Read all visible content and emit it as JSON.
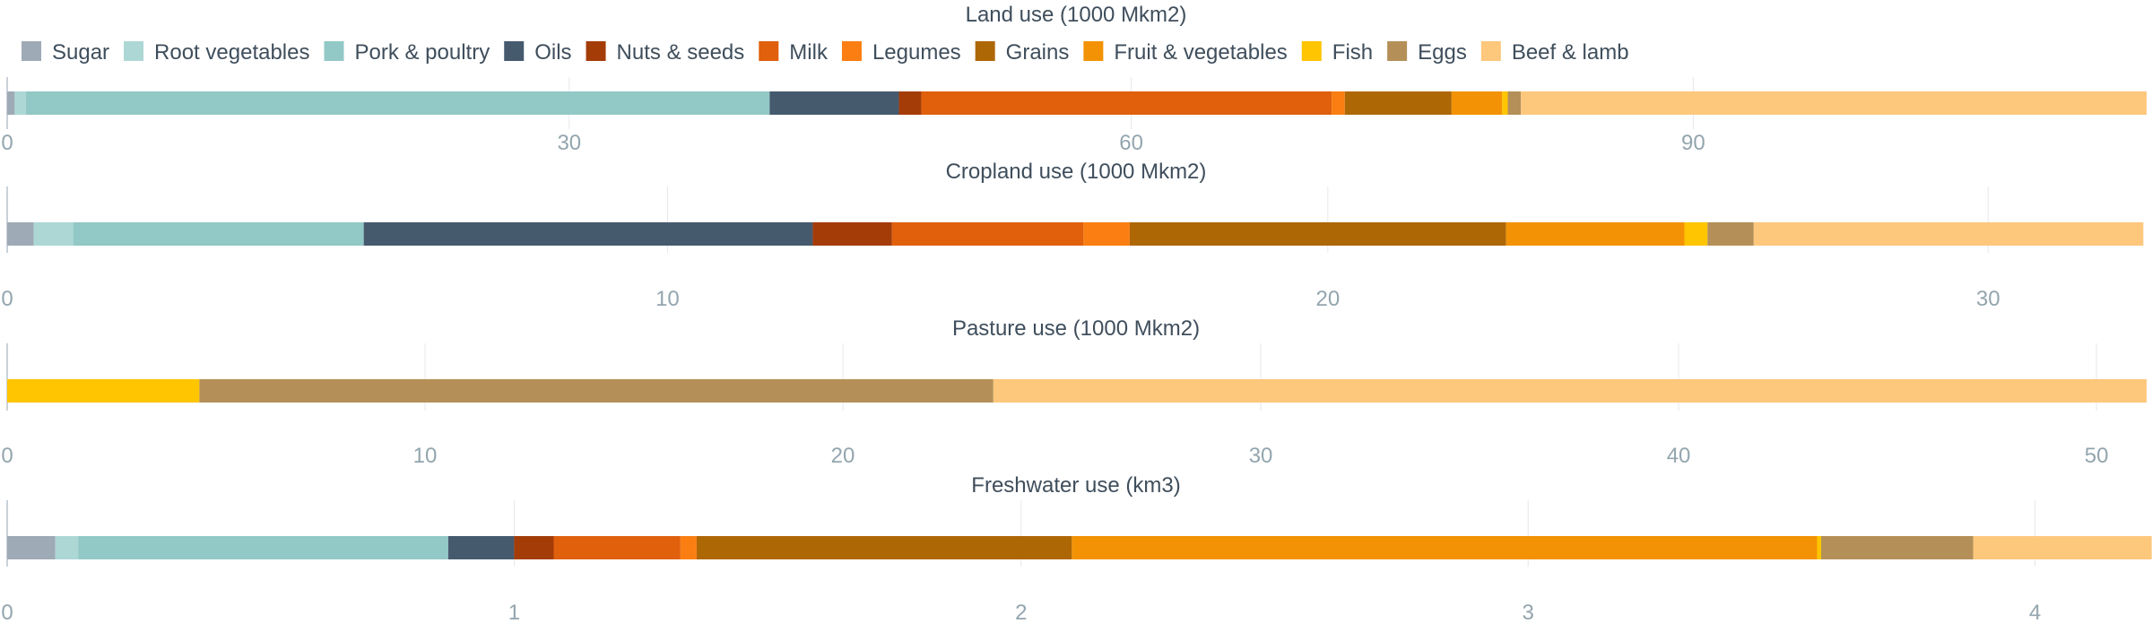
{
  "chart_data": {
    "type": "bar",
    "orientation": "horizontal",
    "stacked": true,
    "legend": {
      "placement": "top-left",
      "entries": [
        {
          "name": "Sugar",
          "color": "#9eaab6"
        },
        {
          "name": "Root vegetables",
          "color": "#acd7d5"
        },
        {
          "name": "Pork & poultry",
          "color": "#92c8c6"
        },
        {
          "name": "Oils",
          "color": "#465a6e"
        },
        {
          "name": "Nuts & seeds",
          "color": "#a43c08"
        },
        {
          "name": "Milk",
          "color": "#e0600c"
        },
        {
          "name": "Legumes",
          "color": "#fa7e12"
        },
        {
          "name": "Grains",
          "color": "#ae6705"
        },
        {
          "name": "Fruit & vegetables",
          "color": "#f39205"
        },
        {
          "name": "Fish",
          "color": "#fec500"
        },
        {
          "name": "Eggs",
          "color": "#b49058"
        },
        {
          "name": "Beef & lamb",
          "color": "#fdc77c"
        }
      ]
    },
    "panels": [
      {
        "title": "Land use (1000 Mkm2)",
        "xlim": [
          0,
          114.2
        ],
        "ticks": [
          0,
          30,
          60,
          90
        ],
        "tick_labels": [
          "0",
          "30",
          "60",
          "90"
        ],
        "grid": true,
        "segments": [
          {
            "series": "Sugar",
            "value": 0.4
          },
          {
            "series": "Root vegetables",
            "value": 0.6
          },
          {
            "series": "Pork & poultry",
            "value": 39.7
          },
          {
            "series": "Oils",
            "value": 6.9
          },
          {
            "series": "Nuts & seeds",
            "value": 1.2
          },
          {
            "series": "Milk",
            "value": 21.9
          },
          {
            "series": "Legumes",
            "value": 0.7
          },
          {
            "series": "Grains",
            "value": 5.7
          },
          {
            "series": "Fruit & vegetables",
            "value": 2.7
          },
          {
            "series": "Fish",
            "value": 0.3
          },
          {
            "series": "Eggs",
            "value": 0.7
          },
          {
            "series": "Beef & lamb",
            "value": 33.4
          }
        ]
      },
      {
        "title": "Cropland use (1000 Mkm2)",
        "xlim": [
          0,
          32.4
        ],
        "ticks": [
          0,
          10,
          20,
          30
        ],
        "tick_labels": [
          "0",
          "10",
          "20",
          "30"
        ],
        "grid": true,
        "segments": [
          {
            "series": "Sugar",
            "value": 0.4
          },
          {
            "series": "Root vegetables",
            "value": 0.6
          },
          {
            "series": "Pork & poultry",
            "value": 4.4
          },
          {
            "series": "Oils",
            "value": 6.8
          },
          {
            "series": "Nuts & seeds",
            "value": 1.2
          },
          {
            "series": "Milk",
            "value": 2.9
          },
          {
            "series": "Legumes",
            "value": 0.7
          },
          {
            "series": "Grains",
            "value": 5.7
          },
          {
            "series": "Fruit & vegetables",
            "value": 2.7
          },
          {
            "series": "Fish",
            "value": 0.35
          },
          {
            "series": "Eggs",
            "value": 0.7
          },
          {
            "series": "Beef & lamb",
            "value": 5.9
          }
        ]
      },
      {
        "title": "Pasture use (1000 Mkm2)",
        "xlim": [
          0,
          51.2
        ],
        "ticks": [
          0,
          10,
          20,
          30,
          40,
          50
        ],
        "tick_labels": [
          "0",
          "10",
          "20",
          "30",
          "40",
          "50"
        ],
        "grid": true,
        "segments": [
          {
            "series": "Fish",
            "value": 4.6
          },
          {
            "series": "Eggs",
            "value": 19.0
          },
          {
            "series": "Beef & lamb",
            "value": 27.6
          }
        ]
      },
      {
        "title": "Freshwater use (km3)",
        "xlim": [
          0,
          4.22
        ],
        "ticks": [
          0,
          1,
          2,
          3,
          4
        ],
        "tick_labels": [
          "0",
          "1",
          "2",
          "3",
          "4"
        ],
        "grid": true,
        "segments": [
          {
            "series": "Sugar",
            "value": 0.095
          },
          {
            "series": "Root vegetables",
            "value": 0.045
          },
          {
            "series": "Pork & poultry",
            "value": 0.73
          },
          {
            "series": "Oils",
            "value": 0.13
          },
          {
            "series": "Nuts & seeds",
            "value": 0.078
          },
          {
            "series": "Milk",
            "value": 0.25
          },
          {
            "series": "Legumes",
            "value": 0.032
          },
          {
            "series": "Grains",
            "value": 0.74
          },
          {
            "series": "Fruit & vegetables",
            "value": 1.47
          },
          {
            "series": "Fish",
            "value": 0.008
          },
          {
            "series": "Eggs",
            "value": 0.3
          },
          {
            "series": "Beef & lamb",
            "value": 0.352
          }
        ]
      }
    ]
  }
}
